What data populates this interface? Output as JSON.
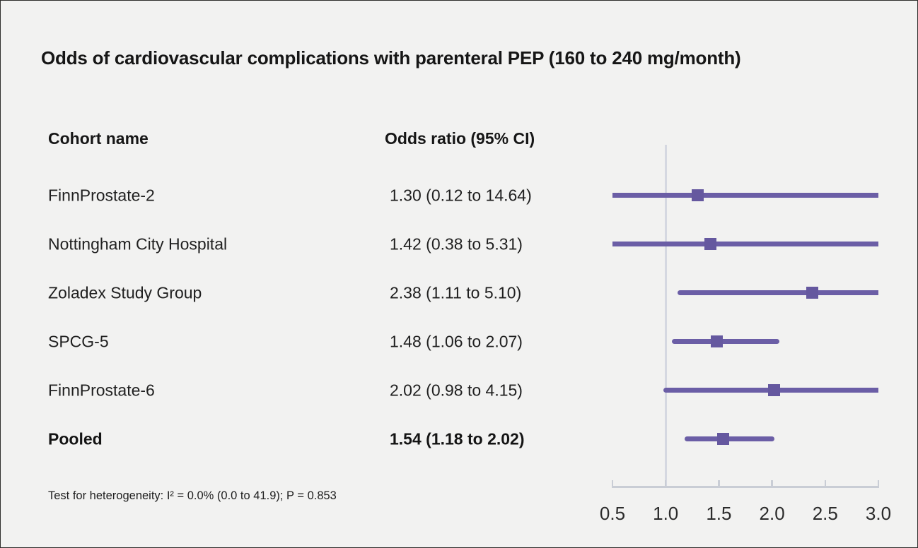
{
  "title": "Odds of cardiovascular complications with parenteral PEP (160 to 240 mg/month)",
  "columns": {
    "cohort": "Cohort name",
    "odds": "Odds ratio (95% CI)"
  },
  "footnote": "Test for heterogeneity: I² = 0.0% (0.0 to 41.9); P = 0.853",
  "colors": {
    "background": "#f2f2f1",
    "ci_line": "#6b5ea6",
    "marker": "#65589f",
    "axis": "#c9cdd5",
    "reference_line": "#d5d8e1",
    "text": "#1c1c1c"
  },
  "chart_data": {
    "type": "forest",
    "title": "Odds of cardiovascular complications with parenteral PEP (160 to 240 mg/month)",
    "x_axis": {
      "scale": "linear",
      "xlim": [
        0.5,
        3.0
      ],
      "tick_values": [
        0.5,
        1.0,
        1.5,
        2.0,
        2.5,
        3.0
      ],
      "tick_labels": [
        "0.5",
        "1.0",
        "1.5",
        "2.0",
        "2.5",
        "3.0"
      ],
      "reference_value": 1.0
    },
    "rows": [
      {
        "label": "FinnProstate-2",
        "or_text": "1.30 (0.12 to 14.64)",
        "or": 1.3,
        "lo": 0.12,
        "hi": 14.64,
        "pooled": false
      },
      {
        "label": "Nottingham City Hospital",
        "or_text": "1.42 (0.38 to 5.31)",
        "or": 1.42,
        "lo": 0.38,
        "hi": 5.31,
        "pooled": false
      },
      {
        "label": "Zoladex Study Group",
        "or_text": "2.38 (1.11 to 5.10)",
        "or": 2.38,
        "lo": 1.11,
        "hi": 5.1,
        "pooled": false
      },
      {
        "label": "SPCG-5",
        "or_text": "1.48 (1.06 to 2.07)",
        "or": 1.48,
        "lo": 1.06,
        "hi": 2.07,
        "pooled": false
      },
      {
        "label": "FinnProstate-6",
        "or_text": "2.02 (0.98 to 4.15)",
        "or": 2.02,
        "lo": 0.98,
        "hi": 4.15,
        "pooled": false
      },
      {
        "label": "Pooled",
        "or_text": "1.54 (1.18 to 2.02)",
        "or": 1.54,
        "lo": 1.18,
        "hi": 2.02,
        "pooled": true
      }
    ],
    "heterogeneity_note": "Test for heterogeneity: I² = 0.0% (0.0 to 41.9); P = 0.853"
  }
}
